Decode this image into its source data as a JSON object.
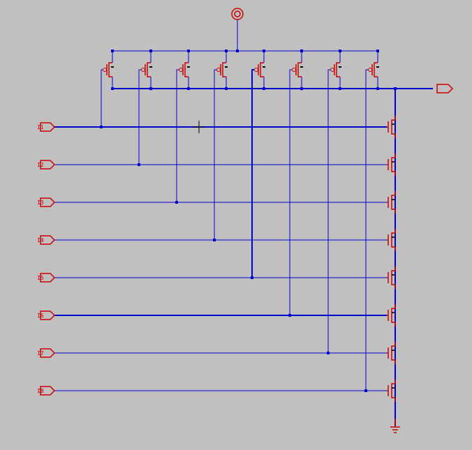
{
  "schematic": {
    "background": "#c0c0c0",
    "wire_color": "#0000cc",
    "component_color": "#cc0000",
    "input_labels": [
      "I1",
      "I2",
      "I3",
      "I4",
      "I5",
      "I6",
      "I7",
      "I8"
    ],
    "output_label": "",
    "gate_type": "8-input static CMOS NAND",
    "pull_up_count": 8,
    "pull_down_count": 8,
    "icons": {
      "supply": "vdd-circle-icon",
      "ground": "ground-icon",
      "input_port": "input-pin-icon",
      "output_port": "output-pin-icon",
      "cursor": "crosshair-cursor-icon"
    }
  }
}
